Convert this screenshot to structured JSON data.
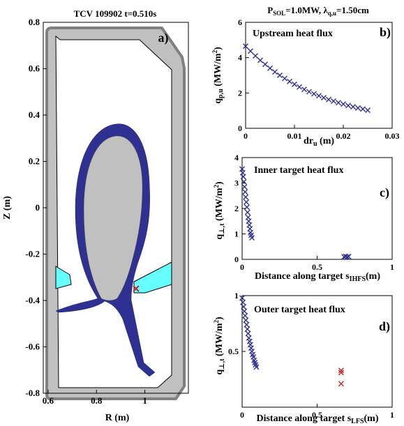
{
  "chart_data": [
    {
      "id": "a",
      "type": "diagram",
      "title": "TCV 109902 t=0.510s",
      "panel_label": "a)",
      "xlabel": "R (m)",
      "ylabel": "Z (m)",
      "xlim": [
        0.58,
        1.18
      ],
      "ylim": [
        -0.8,
        0.8
      ],
      "xticks": [
        "0.6",
        "0.8",
        "1"
      ],
      "xtick_values": [
        0.6,
        0.8,
        1.0
      ],
      "yticks": [
        "-0.8",
        "-0.6",
        "-0.4",
        "-0.2",
        "0",
        "0.2",
        "0.4",
        "0.6",
        "0.8"
      ],
      "ytick_values": [
        -0.8,
        -0.6,
        -0.4,
        -0.2,
        0,
        0.2,
        0.4,
        0.6,
        0.8
      ],
      "marker": {
        "R": 0.963,
        "Z": -0.35
      },
      "colors": {
        "sol": "#2e3192",
        "core": "#c0c0c0",
        "vessel": "#808080",
        "baffle": "#66ffff",
        "marker": "#c1272d"
      }
    },
    {
      "id": "b",
      "type": "scatter",
      "header": "P_SOL=1.0MW,  λ_q,u=1.50cm",
      "header_parts": {
        "p_main": "P",
        "p_sub": "SOL",
        "p_rest": "=1.0MW,  ",
        "lam_main": "λ",
        "lam_sub": "q,u",
        "lam_rest": "=1.50cm"
      },
      "annotation": "Upstream heat flux",
      "panel_label": "b)",
      "xlabel": "dr_u  (m)",
      "xlabel_parts": {
        "main": "dr",
        "sub": "u",
        "rest": "  (m)"
      },
      "ylabel": "q_p,u  (MW/m²)",
      "ylabel_parts": {
        "main": "q",
        "sub": "p,u",
        "rest": "  (MW/m",
        "sup": "2",
        "end": ")"
      },
      "xlim": [
        0,
        0.03
      ],
      "ylim": [
        0,
        6
      ],
      "xticks": [
        "0",
        "0.01",
        "0.02",
        "0.03"
      ],
      "xtick_values": [
        0,
        0.01,
        0.02,
        0.03
      ],
      "yticks": [
        "0",
        "2",
        "4",
        "6"
      ],
      "ytick_values": [
        0,
        2,
        4,
        6
      ],
      "series": [
        {
          "marker": "x",
          "color": "#2e3192",
          "x": [
            0.0,
            0.001,
            0.002,
            0.003,
            0.004,
            0.005,
            0.006,
            0.007,
            0.008,
            0.009,
            0.01,
            0.011,
            0.012,
            0.013,
            0.014,
            0.015,
            0.016,
            0.017,
            0.018,
            0.019,
            0.02,
            0.021,
            0.022,
            0.023,
            0.024,
            0.025
          ],
          "y": [
            4.65,
            4.37,
            4.1,
            3.85,
            3.62,
            3.4,
            3.19,
            3.0,
            2.82,
            2.65,
            2.49,
            2.34,
            2.2,
            2.07,
            1.95,
            1.84,
            1.73,
            1.63,
            1.54,
            1.45,
            1.37,
            1.29,
            1.22,
            1.15,
            1.09,
            1.02
          ]
        }
      ]
    },
    {
      "id": "c",
      "type": "scatter",
      "annotation": "Inner target heat flux",
      "panel_label": "c)",
      "xlabel": "Distance along target s_IHFS (m)",
      "xlabel_parts": {
        "main": "Distance along target s",
        "sub": "IHFS",
        "rest": "(m)"
      },
      "ylabel": "q_⊥,t  (MW/m²)",
      "ylabel_parts": {
        "main": "q",
        "sub": "⊥,t",
        "rest": "  (MW/m",
        "sup": "2",
        "end": ")"
      },
      "xlim": [
        0,
        1
      ],
      "ylim": [
        0,
        4
      ],
      "xticks": [
        "0",
        "0.5",
        "1"
      ],
      "xtick_values": [
        0,
        0.5,
        1
      ],
      "yticks": [
        "0",
        "1",
        "2",
        "3",
        "4"
      ],
      "ytick_values": [
        0,
        1,
        2,
        3,
        4
      ],
      "series": [
        {
          "marker": "x",
          "color": "#2e3192",
          "x": [
            0.0,
            0.004,
            0.008,
            0.012,
            0.016,
            0.02,
            0.024,
            0.028,
            0.032,
            0.036,
            0.04,
            0.044,
            0.048,
            0.052,
            0.056,
            0.06,
            0.065,
            0.68,
            0.69,
            0.7,
            0.71
          ],
          "y": [
            3.55,
            3.4,
            3.25,
            3.05,
            2.85,
            2.65,
            2.45,
            2.25,
            2.05,
            1.85,
            1.65,
            1.5,
            1.35,
            1.2,
            1.05,
            0.95,
            0.85,
            0.1,
            0.12,
            0.09,
            0.11
          ]
        }
      ]
    },
    {
      "id": "d",
      "type": "scatter",
      "annotation": "Outer target heat flux",
      "panel_label": "d)",
      "xlabel": "Distance along target s_LFS (m)",
      "xlabel_parts": {
        "main": "Distance along target s",
        "sub": "LFS",
        "rest": "(m)"
      },
      "ylabel": "q_⊥,t  (MW/m²)",
      "ylabel_parts": {
        "main": "q",
        "sub": "⊥,t",
        "rest": "  (MW/m",
        "sup": "2",
        "end": ")"
      },
      "xlim": [
        0,
        1
      ],
      "ylim": [
        0,
        1
      ],
      "xticks": [
        "0",
        "0.5",
        "1"
      ],
      "xtick_values": [
        0,
        0.5,
        1
      ],
      "yticks": [
        "0.5",
        "1"
      ],
      "ytick_values": [
        0.5,
        1
      ],
      "series": [
        {
          "marker": "x",
          "color": "#2e3192",
          "x": [
            0.0,
            0.005,
            0.01,
            0.015,
            0.02,
            0.025,
            0.03,
            0.035,
            0.04,
            0.045,
            0.05,
            0.055,
            0.06,
            0.065,
            0.07,
            0.075,
            0.08,
            0.085,
            0.09,
            0.095
          ],
          "y": [
            0.98,
            0.94,
            0.9,
            0.86,
            0.82,
            0.78,
            0.74,
            0.7,
            0.66,
            0.62,
            0.59,
            0.56,
            0.53,
            0.5,
            0.47,
            0.45,
            0.42,
            0.4,
            0.38,
            0.36
          ]
        },
        {
          "marker": "x",
          "color": "#c1272d",
          "x": [
            0.66,
            0.66,
            0.66
          ],
          "y": [
            0.33,
            0.31,
            0.21
          ]
        }
      ]
    }
  ]
}
